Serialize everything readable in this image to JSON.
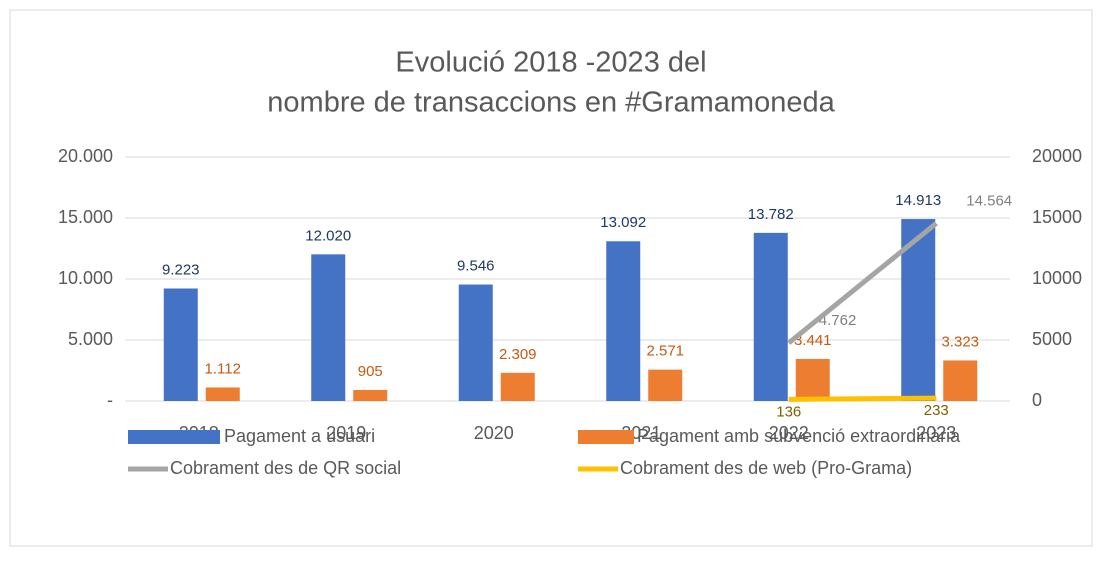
{
  "chart_data": {
    "type": "bar",
    "title": [
      "Evolució 2018 -2023 del",
      "nombre de transaccions en #Gramamoneda"
    ],
    "categories": [
      "2018",
      "2019",
      "2020",
      "2021",
      "2022",
      "2023"
    ],
    "series": [
      {
        "name": "Pagament a usuari",
        "color": "#4472c4",
        "values": [
          9223,
          12020,
          9546,
          13092,
          13782,
          14913
        ],
        "value_labels": [
          "9.223",
          "12.020",
          "9.546",
          "13.092",
          "13.782",
          "14.913"
        ]
      },
      {
        "name": "Pagament amb subvenció extraordinària",
        "color": "#ed7d31",
        "values": [
          1112,
          905,
          2309,
          2571,
          3441,
          3323
        ],
        "value_labels": [
          "1.112",
          "905",
          "2.309",
          "2.571",
          "3.441",
          "3.323"
        ]
      },
      {
        "name": "Cobrament des de QR social",
        "color": "#a5a5a5",
        "type": "line",
        "axis": "y2",
        "values": [
          null,
          null,
          null,
          null,
          4762,
          14564
        ],
        "value_labels": [
          null,
          null,
          null,
          null,
          "4.762",
          "14.564"
        ]
      },
      {
        "name": "Cobrament des de web (Pro-Grama)",
        "color": "#ffc000",
        "type": "line",
        "axis": "y2",
        "values": [
          null,
          null,
          null,
          null,
          136,
          233
        ]
      }
    ],
    "ylim": [
      0,
      20000
    ],
    "yticks": [
      {
        "value": 0,
        "label": "-"
      },
      {
        "value": 5000,
        "label": "5.000"
      },
      {
        "value": 10000,
        "label": "10.000"
      },
      {
        "value": 15000,
        "label": "15.000"
      },
      {
        "value": 20000,
        "label": "20.000"
      }
    ],
    "y2lim": [
      0,
      20000
    ],
    "y2ticks": [
      0,
      5000,
      10000,
      15000,
      20000
    ],
    "grid": true,
    "legend": "bottom"
  }
}
